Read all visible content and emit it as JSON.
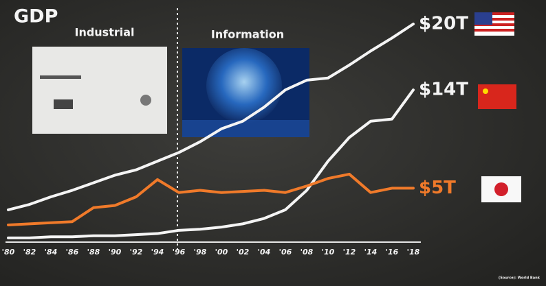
{
  "title": "GDP",
  "eras": [
    "Industrial",
    "Information"
  ],
  "source": "(Source): World Bank",
  "chart_data": {
    "type": "line",
    "categories": [
      "'80",
      "'82",
      "'84",
      "'86",
      "'88",
      "'90",
      "'92",
      "'94",
      "'96",
      "'98",
      "'00",
      "'02",
      "'04",
      "'06",
      "'08",
      "'10",
      "'12",
      "'14",
      "'16",
      "'18"
    ],
    "series": [
      {
        "name": "$20T",
        "color": "#f4f4f4",
        "values": [
          2.8,
          3.3,
          4.0,
          4.6,
          5.3,
          6.0,
          6.5,
          7.3,
          8.1,
          9.1,
          10.3,
          11.0,
          12.3,
          13.9,
          14.8,
          15.0,
          16.2,
          17.5,
          18.7,
          20.0
        ]
      },
      {
        "name": "$14T",
        "color": "#f4f4f4",
        "values": [
          0.2,
          0.2,
          0.3,
          0.3,
          0.4,
          0.4,
          0.5,
          0.6,
          0.9,
          1.0,
          1.2,
          1.5,
          2.0,
          2.8,
          4.6,
          7.3,
          9.5,
          11.0,
          11.2,
          13.9
        ]
      },
      {
        "name": "$5T",
        "color": "#f07a2a",
        "values": [
          1.4,
          1.5,
          1.6,
          1.7,
          3.0,
          3.2,
          4.0,
          5.6,
          4.4,
          4.6,
          4.4,
          4.5,
          4.6,
          4.4,
          5.0,
          5.7,
          6.1,
          4.4,
          4.8,
          4.8
        ]
      }
    ],
    "ylim": [
      0,
      20
    ]
  }
}
